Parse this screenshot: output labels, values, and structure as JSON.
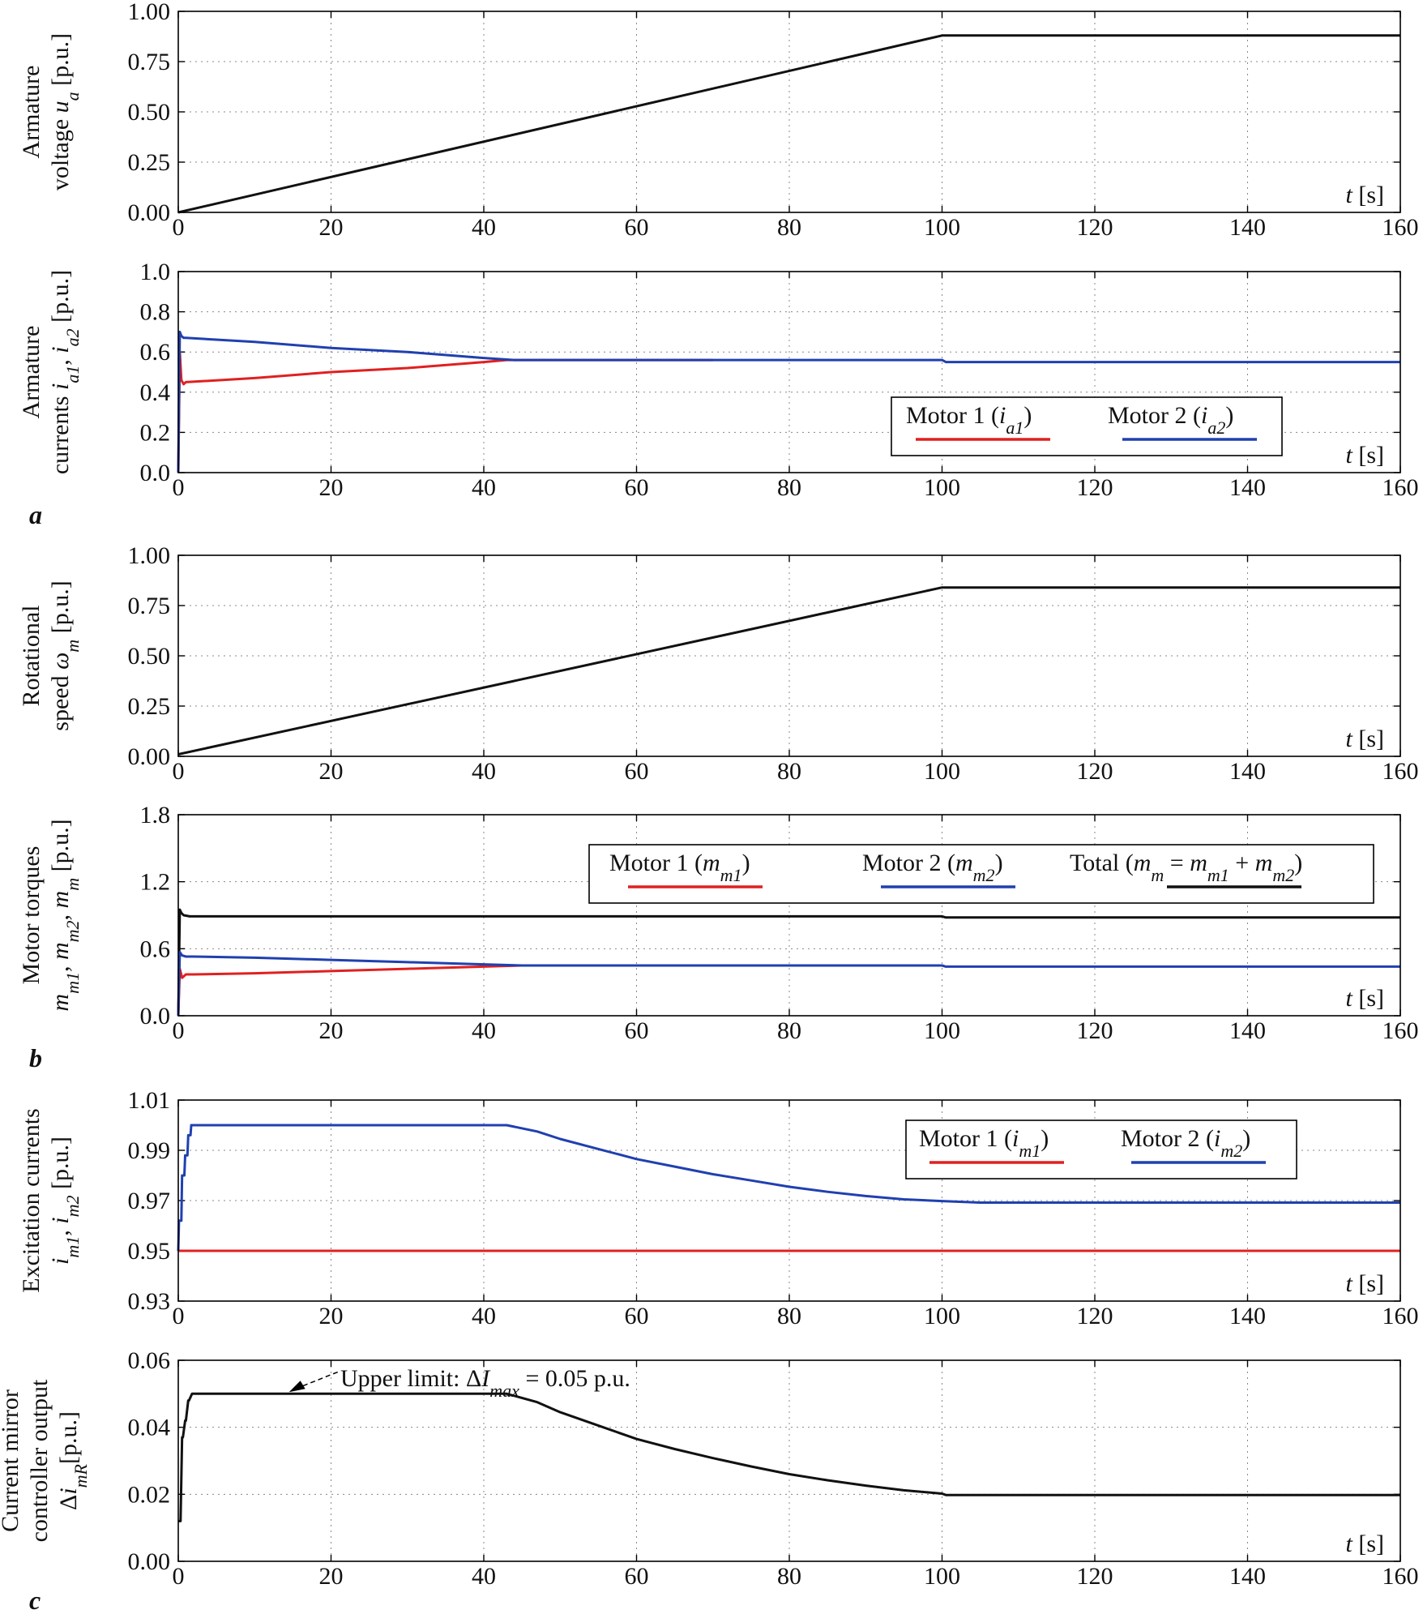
{
  "chart_data": [
    {
      "type": "line",
      "ylabel_line1": "Armature",
      "ylabel_line2": "voltage u",
      "ylabel_sub": "a",
      "ylabel_unit": " [p.u.]",
      "xunit": "t [s]",
      "xlim": [
        0,
        160
      ],
      "ylim": [
        0,
        1
      ],
      "xticks": [
        "0",
        "20",
        "40",
        "60",
        "80",
        "100",
        "120",
        "140",
        "160"
      ],
      "yticks": [
        "0.00",
        "0.25",
        "0.50",
        "0.75",
        "1.00"
      ],
      "series": [
        {
          "name": "u_a",
          "color": "#111111",
          "x": [
            0,
            100,
            100.5,
            160
          ],
          "y": [
            0,
            0.88,
            0.88,
            0.88
          ]
        }
      ]
    },
    {
      "type": "line",
      "ylabel_line1": "Armature",
      "ylabel_line2": "currents i",
      "ylabel_sub": "a1",
      "ylabel_mid": ", i",
      "ylabel_sub2": "a2",
      "ylabel_unit": " [p.u.]",
      "xunit": "t [s]",
      "xlim": [
        0,
        160
      ],
      "ylim": [
        0,
        1
      ],
      "xticks": [
        "0",
        "20",
        "40",
        "60",
        "80",
        "100",
        "120",
        "140",
        "160"
      ],
      "yticks": [
        "0.0",
        "0.2",
        "0.4",
        "0.6",
        "0.8",
        "1.0"
      ],
      "legend": [
        {
          "label": "Motor 1 (i",
          "sub": "a1",
          "close": ")",
          "color": "#e02020"
        },
        {
          "label": "Motor 2 (i",
          "sub": "a2",
          "close": ")",
          "color": "#2040b0"
        }
      ],
      "series": [
        {
          "name": "Motor 1 (ia1)",
          "color": "#e02020",
          "x": [
            0,
            0.2,
            0.4,
            0.7,
            1,
            10,
            20,
            30,
            40,
            43,
            70
          ],
          "y": [
            0,
            0.6,
            0.46,
            0.44,
            0.45,
            0.47,
            0.5,
            0.52,
            0.55,
            0.56,
            0.56
          ]
        },
        {
          "name": "Motor 2 (ia2)",
          "color": "#2040b0",
          "x": [
            0,
            0.2,
            0.4,
            0.7,
            1,
            10,
            20,
            30,
            40,
            44,
            60,
            80,
            100,
            100.5,
            160
          ],
          "y": [
            0,
            0.7,
            0.68,
            0.67,
            0.67,
            0.65,
            0.62,
            0.6,
            0.57,
            0.56,
            0.56,
            0.56,
            0.56,
            0.55,
            0.55
          ]
        }
      ]
    },
    {
      "type": "line",
      "ylabel_line1": "Rotational",
      "ylabel_line2": "speed ω",
      "ylabel_sub": "m",
      "ylabel_unit": " [p.u.]",
      "xunit": "t [s]",
      "xlim": [
        0,
        160
      ],
      "ylim": [
        0,
        1
      ],
      "xticks": [
        "0",
        "20",
        "40",
        "60",
        "80",
        "100",
        "120",
        "140",
        "160"
      ],
      "yticks": [
        "0.00",
        "0.25",
        "0.50",
        "0.75",
        "1.00"
      ],
      "series": [
        {
          "name": "ω_m",
          "color": "#111111",
          "x": [
            0,
            100,
            100.5,
            160
          ],
          "y": [
            0.01,
            0.84,
            0.84,
            0.84
          ]
        }
      ]
    },
    {
      "type": "line",
      "ylabel_line1": "Motor torques",
      "ylabel_line2": "m",
      "ylabel_sub": "m1",
      "ylabel_mid": ", m",
      "ylabel_sub2": "m2",
      "ylabel_mid2": ", m",
      "ylabel_sub3": "m",
      "ylabel_unit": " [p.u.]",
      "xunit": "t [s]",
      "xlim": [
        0,
        160
      ],
      "ylim": [
        0,
        1.8
      ],
      "xticks": [
        "0",
        "20",
        "40",
        "60",
        "80",
        "100",
        "120",
        "140",
        "160"
      ],
      "yticks": [
        "0.0",
        "0.6",
        "1.2",
        "1.8"
      ],
      "legend": [
        {
          "label": "Motor 1 (m",
          "sub": "m1",
          "close": ")",
          "color": "#e02020"
        },
        {
          "label": "Motor 2 (m",
          "sub": "m2",
          "close": ")",
          "color": "#2040b0"
        },
        {
          "label": "Total (m",
          "sub": "m",
          "close": " = m",
          "sub2": "m1",
          "close2": " + m",
          "sub3": "m2",
          "close3": ")",
          "color": "#111111"
        }
      ],
      "series": [
        {
          "name": "Total (mm)",
          "color": "#111111",
          "x": [
            0,
            0.2,
            0.4,
            0.7,
            1.5,
            100,
            100.5,
            160
          ],
          "y": [
            0,
            0.95,
            0.92,
            0.9,
            0.89,
            0.89,
            0.88,
            0.88
          ]
        },
        {
          "name": "Motor 1 (mm1)",
          "color": "#e02020",
          "x": [
            0,
            0.2,
            0.5,
            1,
            2,
            10,
            20,
            30,
            40,
            45,
            85
          ],
          "y": [
            0,
            0.42,
            0.34,
            0.37,
            0.37,
            0.38,
            0.4,
            0.42,
            0.44,
            0.45,
            0.45
          ]
        },
        {
          "name": "Motor 2 (mm2)",
          "color": "#2040b0",
          "x": [
            0,
            0.2,
            0.5,
            1,
            2,
            10,
            20,
            30,
            40,
            45,
            100,
            100.5,
            160
          ],
          "y": [
            0,
            0.57,
            0.54,
            0.53,
            0.53,
            0.52,
            0.5,
            0.48,
            0.46,
            0.45,
            0.45,
            0.44,
            0.44
          ]
        }
      ]
    },
    {
      "type": "line",
      "ylabel_line1": "Excitation currents",
      "ylabel_line2": "i",
      "ylabel_sub": "m1",
      "ylabel_mid": ", i",
      "ylabel_sub2": "m2",
      "ylabel_unit": " [p.u.]",
      "xunit": "t [s]",
      "xlim": [
        0,
        160
      ],
      "ylim": [
        0.93,
        1.01
      ],
      "xticks": [
        "0",
        "20",
        "40",
        "60",
        "80",
        "100",
        "120",
        "140",
        "160"
      ],
      "yticks": [
        "0.93",
        "0.95",
        "0.97",
        "0.99",
        "1.01"
      ],
      "legend": [
        {
          "label": "Motor 1 (i",
          "sub": "m1",
          "close": ")",
          "color": "#e02020"
        },
        {
          "label": "Motor 2 (i",
          "sub": "m2",
          "close": ")",
          "color": "#2040b0"
        }
      ],
      "series": [
        {
          "name": "Motor 1 (im1)",
          "color": "#e02020",
          "x": [
            0,
            160
          ],
          "y": [
            0.95,
            0.95
          ]
        },
        {
          "name": "Motor 2 (im2)",
          "color": "#2040b0",
          "x": [
            0,
            0.1,
            0.4,
            0.5,
            0.8,
            0.9,
            1.2,
            1.3,
            1.6,
            1.7,
            43,
            47,
            50,
            55,
            60,
            65,
            70,
            75,
            80,
            85,
            90,
            95,
            100,
            105,
            110,
            160
          ],
          "y": [
            0.95,
            0.962,
            0.962,
            0.98,
            0.98,
            0.988,
            0.988,
            0.996,
            0.996,
            1.0,
            1.0,
            0.9975,
            0.9945,
            0.9905,
            0.9865,
            0.9835,
            0.9805,
            0.978,
            0.9755,
            0.9735,
            0.9718,
            0.9705,
            0.9698,
            0.9692,
            0.9692,
            0.9692
          ]
        }
      ]
    },
    {
      "type": "line",
      "ylabel_line1": "Current mirror",
      "ylabel_line2": "controller output",
      "ylabel_line3": "Δi",
      "ylabel_sub": "mR",
      "ylabel_unit": "[p.u.]",
      "xunit": "t [s]",
      "xlim": [
        0,
        160
      ],
      "ylim": [
        0,
        0.06
      ],
      "xticks": [
        "0",
        "20",
        "40",
        "60",
        "80",
        "100",
        "120",
        "140",
        "160"
      ],
      "yticks": [
        "0.00",
        "0.02",
        "0.04",
        "0.06"
      ],
      "annotation": {
        "text": "Upper limit: ΔI",
        "sub": "max",
        "tail": " = 0.05 p.u.",
        "x": 14.5,
        "y": 0.0505
      },
      "series": [
        {
          "name": "ΔimR",
          "color": "#111111",
          "x": [
            0,
            0.3,
            0.5,
            0.6,
            0.9,
            1.0,
            1.3,
            1.4,
            1.8,
            43,
            47,
            50,
            55,
            60,
            65,
            70,
            75,
            80,
            85,
            90,
            95,
            100,
            100.5,
            160
          ],
          "y": [
            0.012,
            0.012,
            0.037,
            0.037,
            0.042,
            0.042,
            0.048,
            0.048,
            0.05,
            0.05,
            0.0475,
            0.0445,
            0.0405,
            0.0365,
            0.0335,
            0.0308,
            0.0283,
            0.026,
            0.0242,
            0.0226,
            0.0212,
            0.0202,
            0.0198,
            0.0198
          ]
        }
      ]
    }
  ],
  "panel_labels": [
    "a",
    "b",
    "c"
  ]
}
